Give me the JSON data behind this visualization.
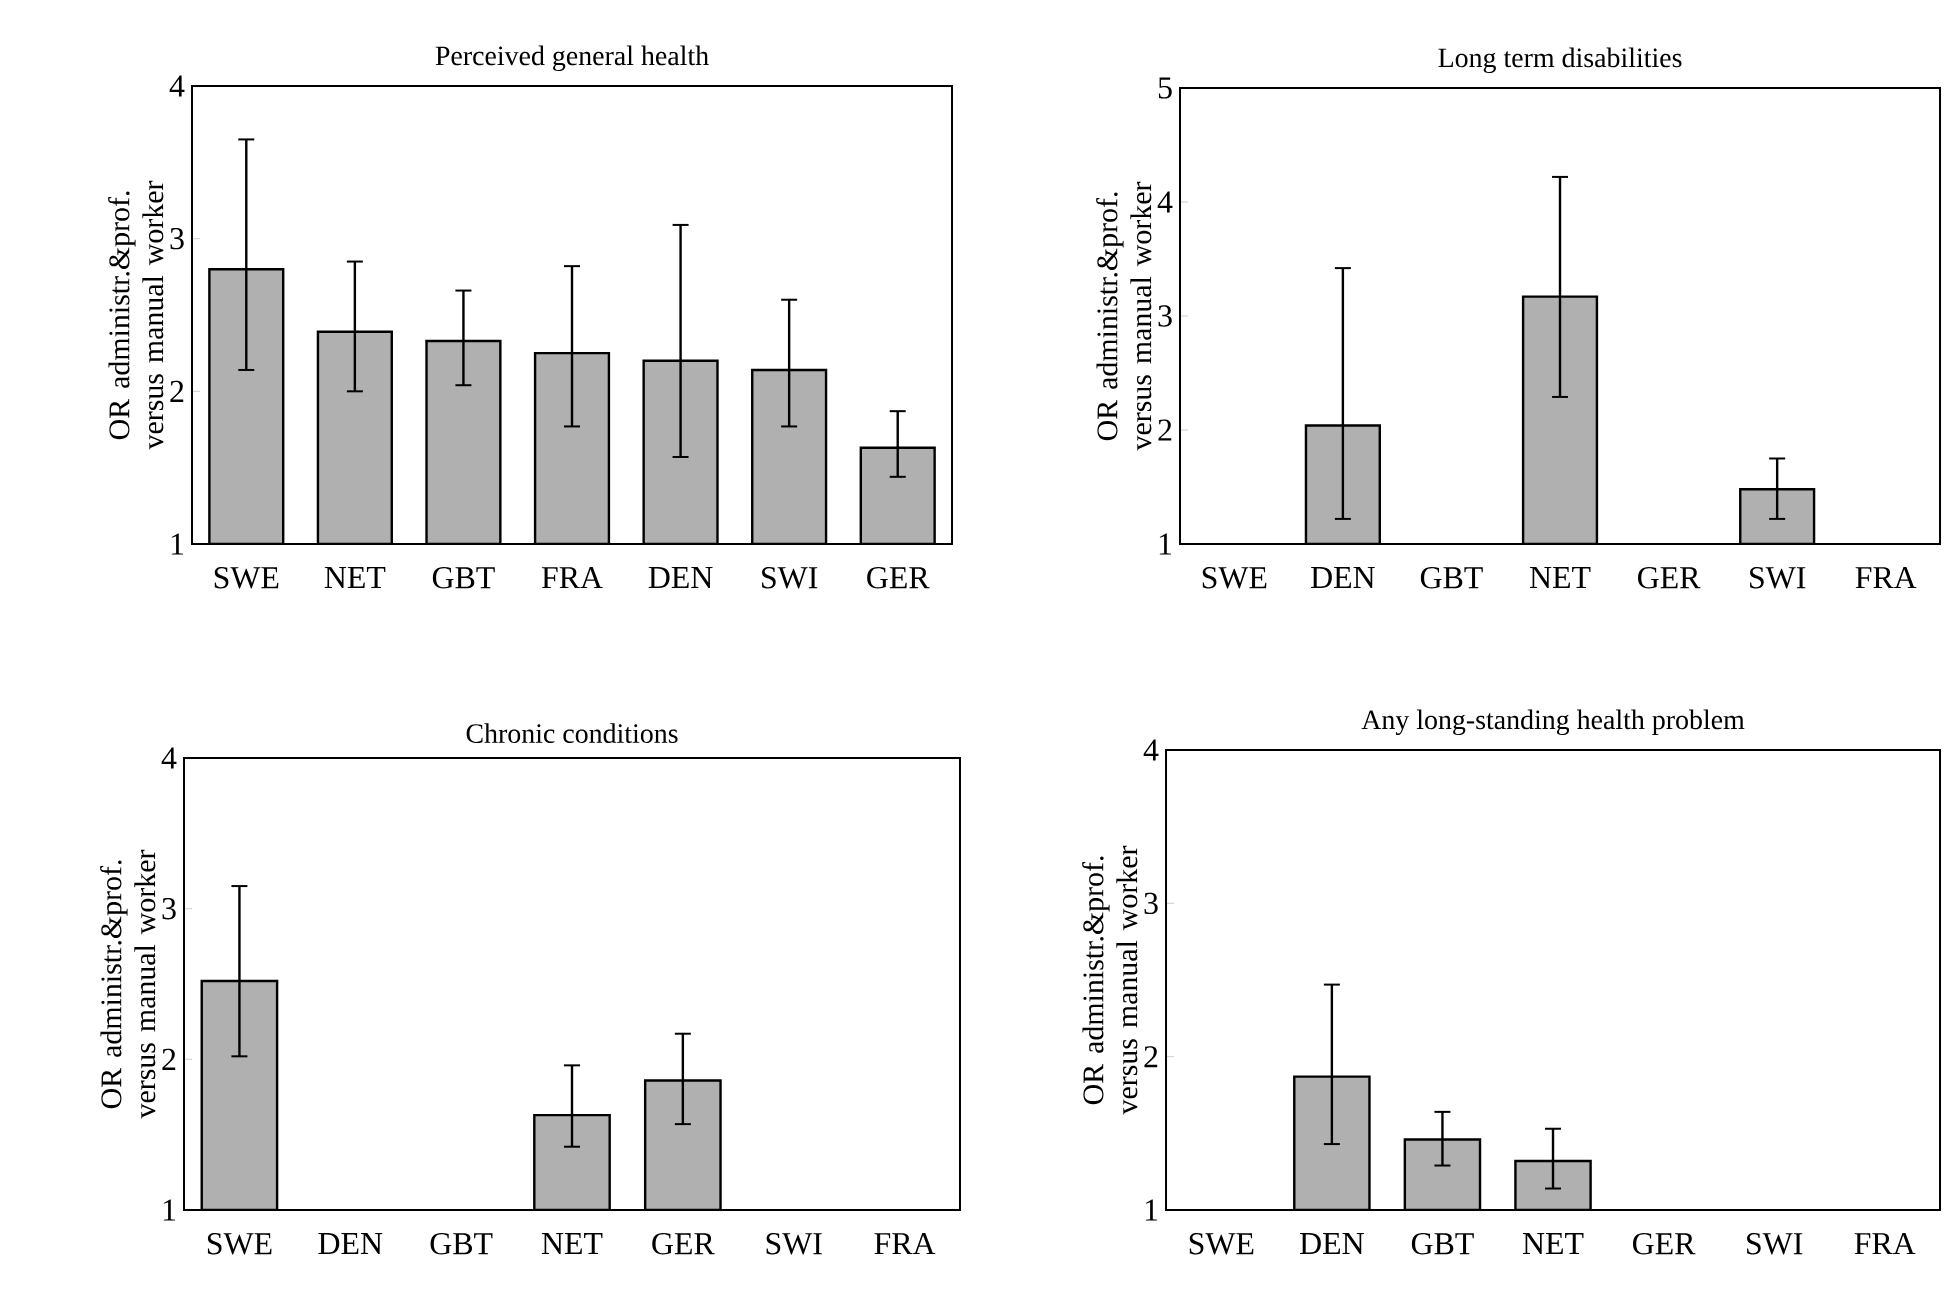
{
  "chart_data": [
    {
      "type": "bar",
      "title": "Perceived general health",
      "ylabel": "OR administr.&prof. versus manual worker",
      "categories": [
        "SWE",
        "NET",
        "GBT",
        "FRA",
        "DEN",
        "SWI",
        "GER"
      ],
      "values": [
        2.8,
        2.39,
        2.33,
        2.25,
        2.2,
        2.14,
        1.63
      ],
      "errors": [
        [
          2.14,
          3.65
        ],
        [
          2.0,
          2.85
        ],
        [
          2.04,
          2.66
        ],
        [
          1.77,
          2.82
        ],
        [
          1.57,
          3.09
        ],
        [
          1.77,
          2.6
        ],
        [
          1.44,
          1.87
        ]
      ],
      "color": "#b0b0b0",
      "ylim": [
        1,
        4
      ],
      "yticks": [
        1,
        2,
        3,
        4
      ]
    },
    {
      "type": "bar",
      "title": "Long term disabilities",
      "ylabel": "OR administr.&prof. versus manual worker",
      "categories": [
        "SWE",
        "DEN",
        "GBT",
        "NET",
        "GER",
        "SWI",
        "FRA"
      ],
      "values": [
        null,
        2.04,
        null,
        3.17,
        null,
        1.48,
        null
      ],
      "errors": [
        null,
        [
          1.22,
          3.42
        ],
        null,
        [
          2.29,
          4.22
        ],
        null,
        [
          1.22,
          1.75
        ],
        null
      ],
      "color": "#b0b0b0",
      "ylim": [
        1,
        5
      ],
      "yticks": [
        1,
        2,
        3,
        4,
        5
      ]
    },
    {
      "type": "bar",
      "title": "Chronic conditions",
      "ylabel": "OR administr.&prof. versus manual worker",
      "categories": [
        "SWE",
        "DEN",
        "GBT",
        "NET",
        "GER",
        "SWI",
        "FRA"
      ],
      "values": [
        2.52,
        null,
        null,
        1.63,
        1.86,
        null,
        null
      ],
      "errors": [
        [
          2.02,
          3.15
        ],
        null,
        null,
        [
          1.42,
          1.96
        ],
        [
          1.57,
          2.17
        ],
        null,
        null
      ],
      "color": "#b0b0b0",
      "ylim": [
        1,
        4
      ],
      "yticks": [
        1,
        2,
        3,
        4
      ]
    },
    {
      "type": "bar",
      "title": "Any long-standing health problem",
      "ylabel": "OR administr.&prof. versus manual worker",
      "categories": [
        "SWE",
        "DEN",
        "GBT",
        "NET",
        "GER",
        "SWI",
        "FRA"
      ],
      "values": [
        null,
        1.87,
        1.46,
        1.32,
        null,
        null,
        null
      ],
      "errors": [
        null,
        [
          1.43,
          2.47
        ],
        [
          1.29,
          1.64
        ],
        [
          1.14,
          1.53
        ],
        null,
        null,
        null
      ],
      "color": "#b0b0b0",
      "ylim": [
        1,
        4
      ],
      "yticks": [
        1,
        2,
        3,
        4
      ]
    }
  ]
}
